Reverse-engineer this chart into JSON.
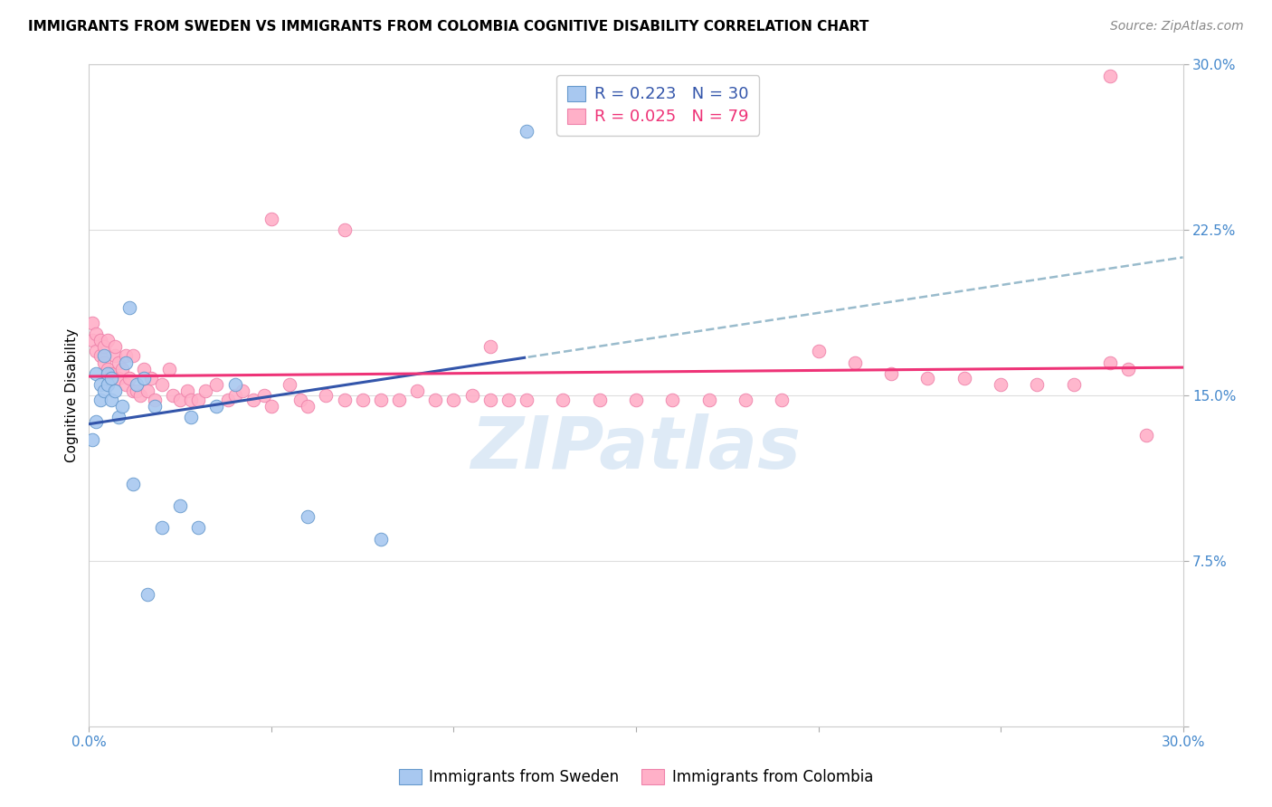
{
  "title": "IMMIGRANTS FROM SWEDEN VS IMMIGRANTS FROM COLOMBIA COGNITIVE DISABILITY CORRELATION CHART",
  "source": "Source: ZipAtlas.com",
  "ylabel": "Cognitive Disability",
  "xlim": [
    0.0,
    0.3
  ],
  "ylim": [
    0.0,
    0.3
  ],
  "xticks": [
    0.0,
    0.05,
    0.1,
    0.15,
    0.2,
    0.25,
    0.3
  ],
  "yticks": [
    0.0,
    0.075,
    0.15,
    0.225,
    0.3
  ],
  "sweden_R": 0.223,
  "sweden_N": 30,
  "colombia_R": 0.025,
  "colombia_N": 79,
  "sweden_scatter_color": "#A8C8F0",
  "sweden_edge_color": "#6699CC",
  "colombia_scatter_color": "#FFB0C8",
  "colombia_edge_color": "#EE82AA",
  "sweden_line_color": "#3355AA",
  "colombia_line_color": "#EE3377",
  "dash_line_color": "#99BBCC",
  "background_color": "#FFFFFF",
  "grid_color": "#DDDDDD",
  "ytick_color": "#4488CC",
  "xtick_color": "#4488CC",
  "watermark": "ZIPatlas",
  "watermark_color": "#C8DCF0",
  "sweden_x": [
    0.001,
    0.002,
    0.002,
    0.003,
    0.003,
    0.004,
    0.004,
    0.005,
    0.005,
    0.006,
    0.006,
    0.007,
    0.008,
    0.009,
    0.01,
    0.011,
    0.012,
    0.013,
    0.015,
    0.016,
    0.018,
    0.02,
    0.025,
    0.028,
    0.03,
    0.035,
    0.04,
    0.06,
    0.08,
    0.12
  ],
  "sweden_y": [
    0.13,
    0.16,
    0.138,
    0.155,
    0.148,
    0.168,
    0.152,
    0.16,
    0.155,
    0.148,
    0.158,
    0.152,
    0.14,
    0.145,
    0.165,
    0.19,
    0.11,
    0.155,
    0.158,
    0.06,
    0.145,
    0.09,
    0.1,
    0.14,
    0.09,
    0.145,
    0.155,
    0.095,
    0.085,
    0.27
  ],
  "colombia_x": [
    0.001,
    0.001,
    0.002,
    0.002,
    0.003,
    0.003,
    0.004,
    0.004,
    0.005,
    0.005,
    0.006,
    0.007,
    0.007,
    0.008,
    0.008,
    0.009,
    0.01,
    0.01,
    0.011,
    0.012,
    0.012,
    0.013,
    0.014,
    0.015,
    0.016,
    0.017,
    0.018,
    0.02,
    0.022,
    0.023,
    0.025,
    0.027,
    0.028,
    0.03,
    0.032,
    0.035,
    0.038,
    0.04,
    0.042,
    0.045,
    0.048,
    0.05,
    0.055,
    0.058,
    0.06,
    0.065,
    0.07,
    0.075,
    0.08,
    0.085,
    0.09,
    0.095,
    0.1,
    0.105,
    0.11,
    0.115,
    0.12,
    0.13,
    0.14,
    0.15,
    0.16,
    0.17,
    0.18,
    0.19,
    0.2,
    0.21,
    0.22,
    0.23,
    0.24,
    0.25,
    0.26,
    0.27,
    0.28,
    0.285,
    0.05,
    0.07,
    0.11,
    0.28,
    0.29
  ],
  "colombia_y": [
    0.175,
    0.183,
    0.17,
    0.178,
    0.168,
    0.175,
    0.165,
    0.172,
    0.162,
    0.175,
    0.16,
    0.168,
    0.172,
    0.158,
    0.165,
    0.162,
    0.155,
    0.168,
    0.158,
    0.152,
    0.168,
    0.152,
    0.15,
    0.162,
    0.152,
    0.158,
    0.148,
    0.155,
    0.162,
    0.15,
    0.148,
    0.152,
    0.148,
    0.148,
    0.152,
    0.155,
    0.148,
    0.15,
    0.152,
    0.148,
    0.15,
    0.145,
    0.155,
    0.148,
    0.145,
    0.15,
    0.148,
    0.148,
    0.148,
    0.148,
    0.152,
    0.148,
    0.148,
    0.15,
    0.148,
    0.148,
    0.148,
    0.148,
    0.148,
    0.148,
    0.148,
    0.148,
    0.148,
    0.148,
    0.17,
    0.165,
    0.16,
    0.158,
    0.158,
    0.155,
    0.155,
    0.155,
    0.165,
    0.162,
    0.23,
    0.225,
    0.172,
    0.295,
    0.132
  ]
}
